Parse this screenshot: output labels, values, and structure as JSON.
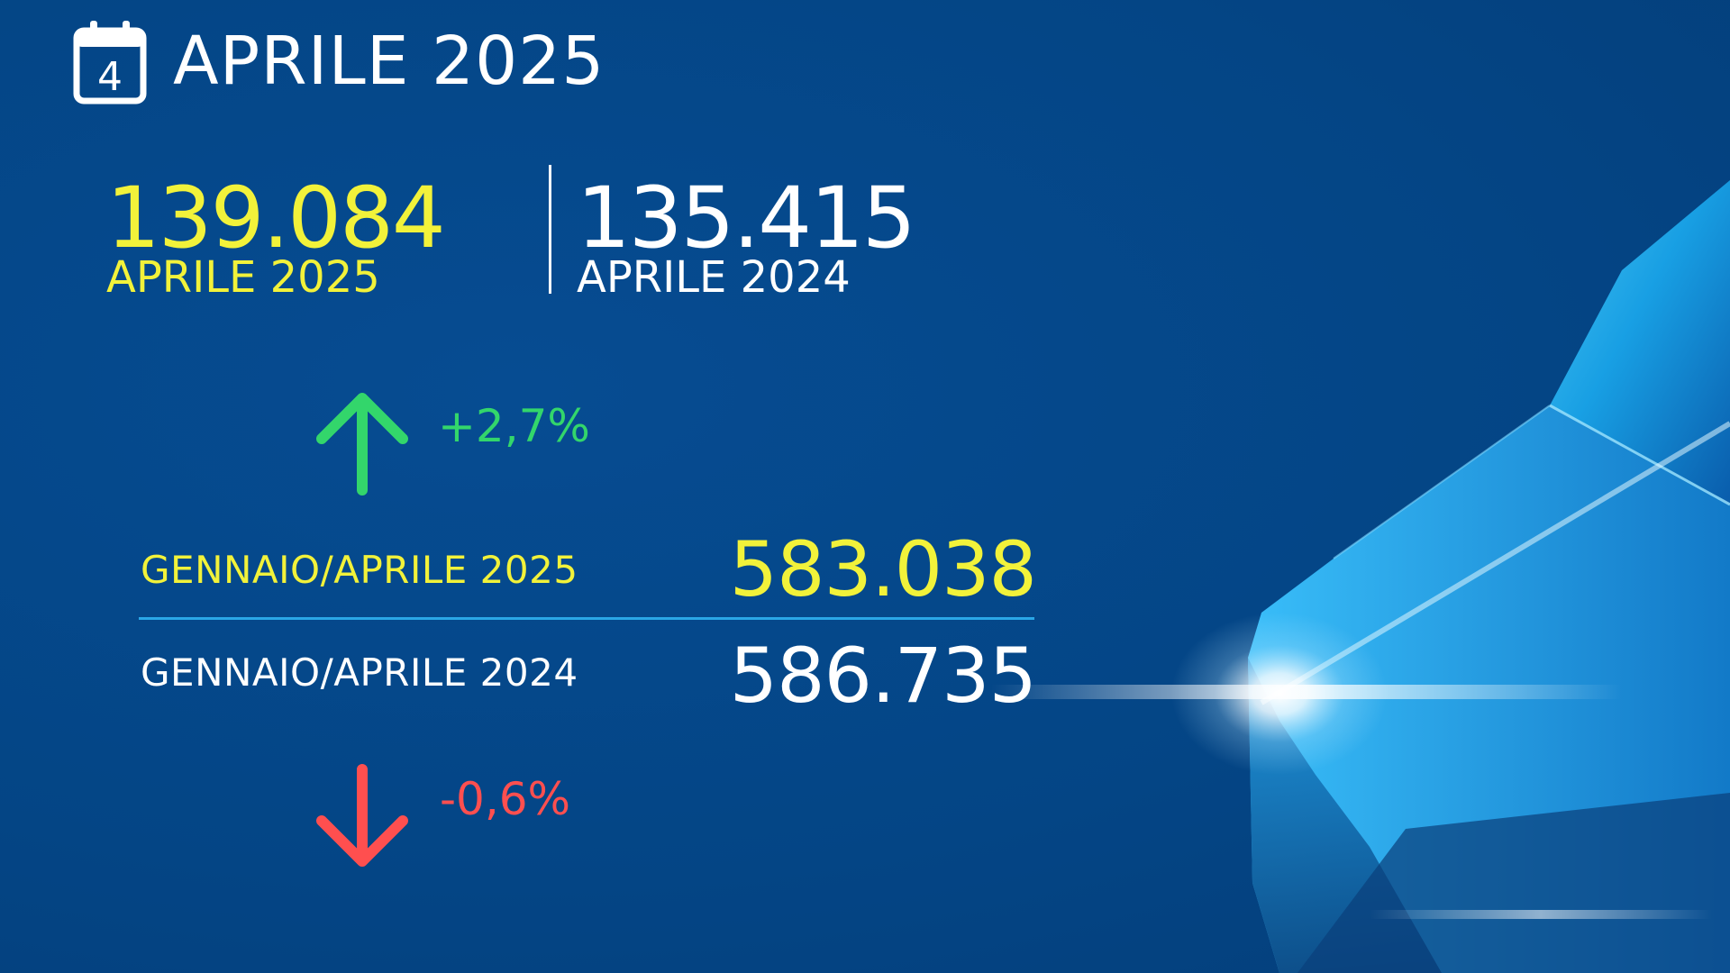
{
  "header": {
    "calendar_day": "4",
    "title": "APRILE 2025"
  },
  "monthly": {
    "current": {
      "value": "139.084",
      "label": "APRILE 2025"
    },
    "previous": {
      "value": "135.415",
      "label": "APRILE 2024"
    },
    "change": {
      "text": "+2,7%",
      "direction": "up",
      "color": "#33d66b"
    }
  },
  "year_to_date": {
    "current": {
      "label": "GENNAIO/APRILE 2025",
      "value": "583.038"
    },
    "previous": {
      "label": "GENNAIO/APRILE 2024",
      "value": "586.735"
    },
    "change": {
      "text": "-0,6%",
      "direction": "down",
      "color": "#ff4f4f"
    }
  },
  "colors": {
    "background": "#04478a",
    "highlight": "#f2f23a",
    "divider": "#2aa6e6"
  }
}
